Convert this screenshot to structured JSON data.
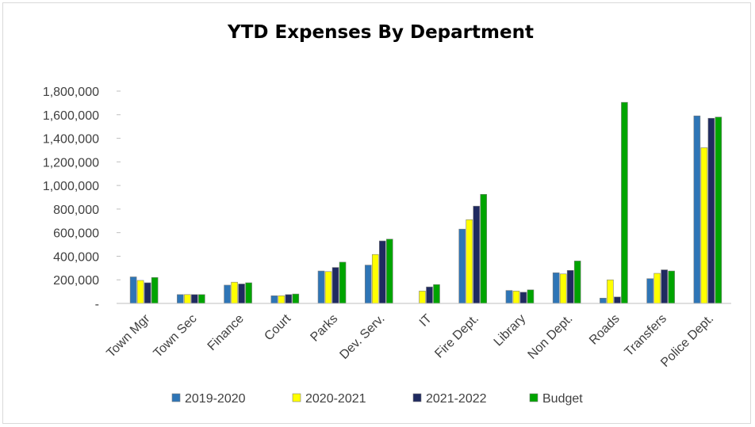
{
  "chart_data": {
    "type": "bar",
    "title": "YTD Expenses By Department",
    "xlabel": "",
    "ylabel": "",
    "ylim": [
      0,
      1800000
    ],
    "yticks": [
      0,
      200000,
      400000,
      600000,
      800000,
      1000000,
      1200000,
      1400000,
      1600000,
      1800000
    ],
    "ytick_labels": [
      "-",
      "200,000",
      "400,000",
      "600,000",
      "800,000",
      "1,000,000",
      "1,200,000",
      "1,400,000",
      "1,600,000",
      "1,800,000"
    ],
    "grid": false,
    "legend_position": "bottom",
    "categories": [
      "Town Mgr",
      "Town Sec",
      "Finance",
      "Court",
      "Parks",
      "Dev. Serv.",
      "IT",
      "Fire Dept.",
      "Library",
      "Non Dept.",
      "Roads",
      "Transfers",
      "Police Dept."
    ],
    "series": [
      {
        "name": "2019-2020",
        "color": "#2e75b6",
        "values": [
          225000,
          75000,
          155000,
          65000,
          275000,
          325000,
          0,
          630000,
          110000,
          260000,
          45000,
          210000,
          1590000
        ]
      },
      {
        "name": "2020-2021",
        "color": "#ffff00",
        "values": [
          195000,
          75000,
          180000,
          65000,
          270000,
          415000,
          105000,
          710000,
          105000,
          250000,
          200000,
          255000,
          1320000
        ]
      },
      {
        "name": "2021-2022",
        "color": "#1f2a60",
        "values": [
          175000,
          75000,
          165000,
          75000,
          305000,
          530000,
          140000,
          825000,
          95000,
          280000,
          55000,
          285000,
          1570000
        ]
      },
      {
        "name": "Budget",
        "color": "#00a400",
        "values": [
          220000,
          75000,
          175000,
          80000,
          350000,
          545000,
          160000,
          925000,
          115000,
          360000,
          1705000,
          275000,
          1580000
        ]
      }
    ]
  }
}
